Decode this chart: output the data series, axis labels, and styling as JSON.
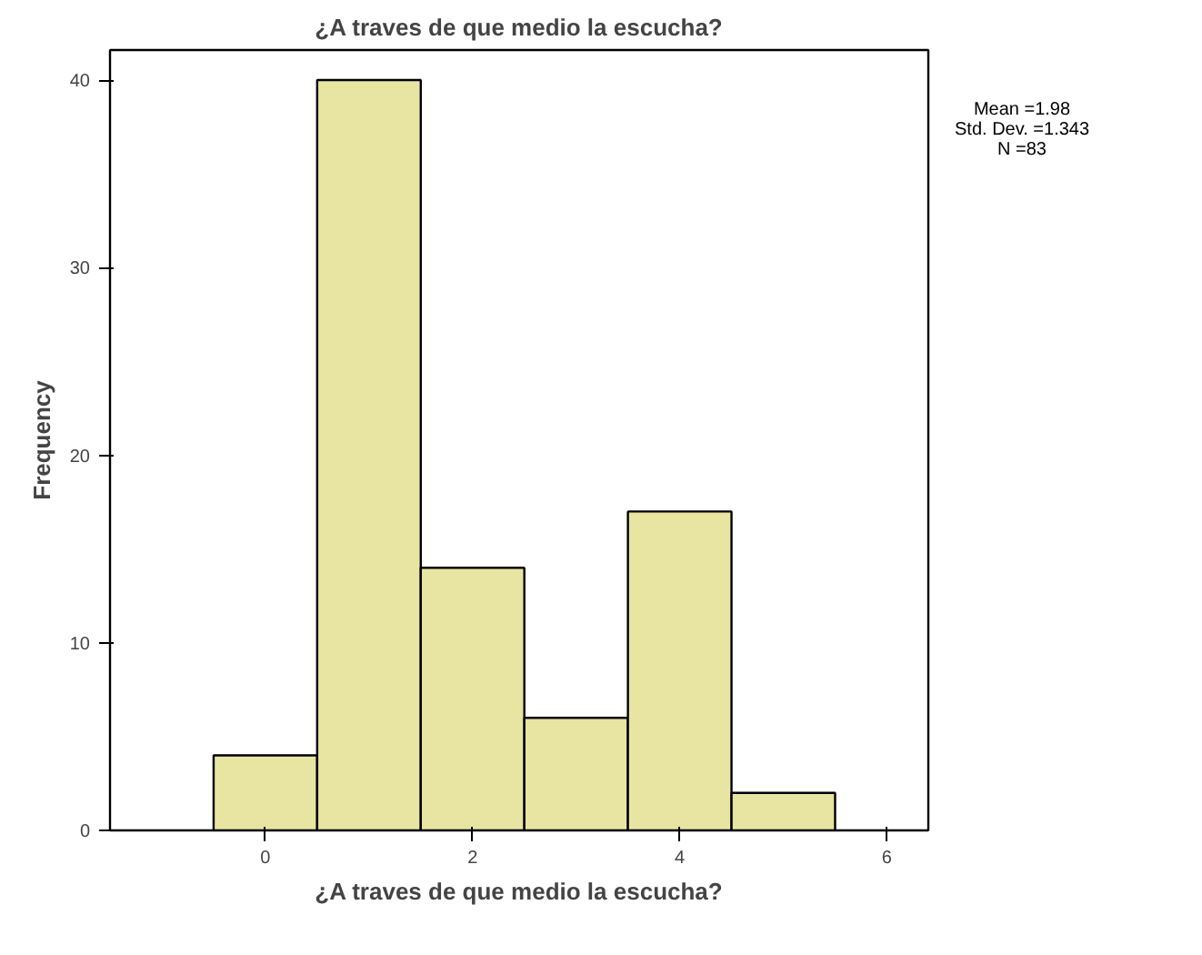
{
  "chart_data": {
    "type": "histogram",
    "title": "¿A traves de que medio la escucha?",
    "xlabel": "¿A traves de que medio la escucha?",
    "ylabel": "Frequency",
    "bins": [
      -0.5,
      0.5,
      1.5,
      2.5,
      3.5,
      4.5,
      5.5
    ],
    "values": [
      4,
      40,
      14,
      6,
      17,
      2
    ],
    "color": "#e8e4a2",
    "xlim": [
      -1.5,
      6.4
    ],
    "ylim": [
      0,
      41.6
    ],
    "xticks": [
      0,
      2,
      4,
      6
    ],
    "yticks": [
      0,
      10,
      20,
      30,
      40
    ],
    "grid": false,
    "annotations": [
      "Mean =1.98",
      "Std. Dev. =1.343",
      "N =83"
    ]
  }
}
